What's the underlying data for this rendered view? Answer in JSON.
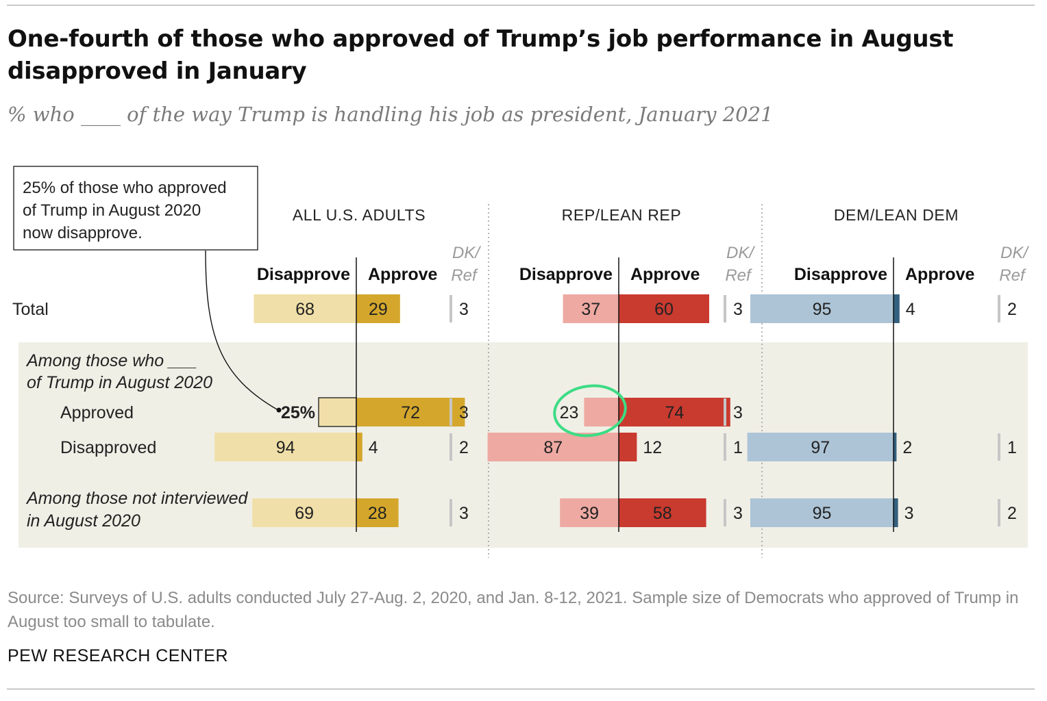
{
  "title": "One-fourth of those who approved of Trump’s job performance in August disapproved in January",
  "subtitle": "% who ____ of the way Trump is handling his job as president, January 2021",
  "source": "Source: Surveys of U.S. adults conducted July 27-Aug. 2, 2020, and Jan. 8-12, 2021. Sample size of Democrats who approved of Trump in August too small to tabulate.",
  "credit": "PEW RESEARCH CENTER",
  "annotation": {
    "lines": [
      "25% of those who approved",
      "of Trump in August 2020",
      "now disapprove."
    ],
    "highlight_label": "25%"
  },
  "colors": {
    "all": {
      "disapprove": "#f0dfa8",
      "approve": "#d4a72c",
      "header": "#707070"
    },
    "rep": {
      "disapprove": "#eda9a2",
      "approve": "#c93a2f",
      "header": "#c93a2f"
    },
    "dem": {
      "disapprove": "#adc4d6",
      "approve": "#34607f",
      "header": "#4a6f8f"
    },
    "dkref_bar": "#c6c6c6",
    "band": "#f0efe6",
    "highlight_circle": "#3ddc84"
  },
  "chart_data": {
    "type": "bar",
    "orientation": "diverging-horizontal",
    "columns": {
      "disapprove": "Disapprove",
      "approve": "Approve",
      "dkref": [
        "DK/",
        "Ref"
      ]
    },
    "groups": [
      {
        "key": "all",
        "label": "ALL U.S. ADULTS"
      },
      {
        "key": "rep",
        "label": "REP/LEAN REP"
      },
      {
        "key": "dem",
        "label": "DEM/LEAN DEM"
      }
    ],
    "section_labels": {
      "among_approved_disapproved": [
        "Among those who ___",
        "of Trump in August 2020"
      ]
    },
    "rows": [
      {
        "label": [
          "Total"
        ],
        "values": {
          "all": {
            "disapprove": 68,
            "approve": 29,
            "dkref": 3
          },
          "rep": {
            "disapprove": 37,
            "approve": 60,
            "dkref": 3
          },
          "dem": {
            "disapprove": 95,
            "approve": 4,
            "dkref": 2
          }
        }
      },
      {
        "label": [
          "Approved"
        ],
        "values": {
          "all": {
            "disapprove": 25,
            "approve": 72,
            "dkref": 3
          },
          "rep": {
            "disapprove": 23,
            "approve": 74,
            "dkref": 3
          },
          "dem": null
        }
      },
      {
        "label": [
          "Disapproved"
        ],
        "values": {
          "all": {
            "disapprove": 94,
            "approve": 4,
            "dkref": 2
          },
          "rep": {
            "disapprove": 87,
            "approve": 12,
            "dkref": 1
          },
          "dem": {
            "disapprove": 97,
            "approve": 2,
            "dkref": 1
          }
        }
      },
      {
        "label": [
          "Among those not interviewed",
          "in August 2020"
        ],
        "values": {
          "all": {
            "disapprove": 69,
            "approve": 28,
            "dkref": 3
          },
          "rep": {
            "disapprove": 39,
            "approve": 58,
            "dkref": 3
          },
          "dem": {
            "disapprove": 95,
            "approve": 3,
            "dkref": 2
          }
        }
      }
    ]
  }
}
